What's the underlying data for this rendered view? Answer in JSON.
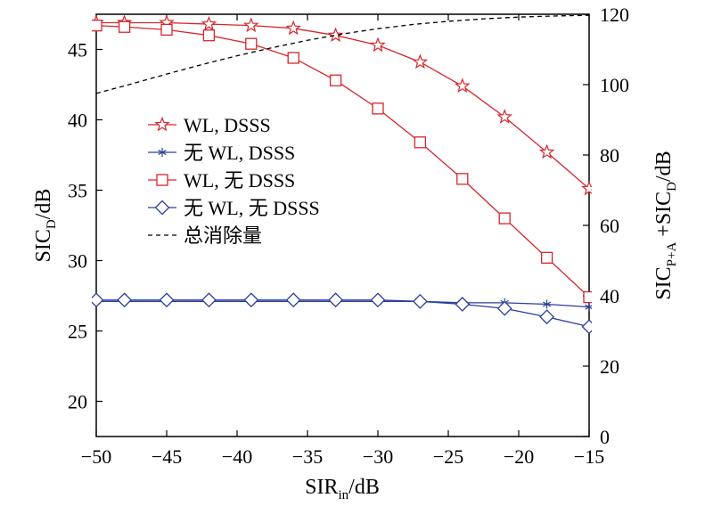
{
  "chart_data": {
    "type": "line",
    "xlabel": {
      "main": "SIR",
      "sub": "in",
      "unit": "/dB"
    },
    "ylabel_left": {
      "main": "SIC",
      "sub": "D",
      "unit": "/dB"
    },
    "ylabel_right": {
      "main1": "SIC",
      "sub1": "P+A",
      "mid": " +SIC",
      "sub2": "D",
      "unit": "/dB"
    },
    "xlim": [
      -50,
      -15
    ],
    "ylim_left": [
      17.5,
      47.5
    ],
    "ylim_right": [
      0,
      120
    ],
    "x_ticks": [
      -50,
      -45,
      -40,
      -35,
      -30,
      -25,
      -20,
      -15
    ],
    "x_tick_labels": [
      "−50",
      "−45",
      "−40",
      "−35",
      "−30",
      "−25",
      "−20",
      "−15"
    ],
    "y_left_ticks": [
      20,
      25,
      30,
      35,
      40,
      45
    ],
    "y_left_tick_labels": [
      "20",
      "25",
      "30",
      "35",
      "40",
      "45"
    ],
    "y_right_ticks": [
      0,
      20,
      40,
      60,
      80,
      100,
      120
    ],
    "y_right_tick_labels": [
      "0",
      "20",
      "40",
      "60",
      "80",
      "100",
      "120"
    ],
    "grid": false,
    "legend_position": "center-left",
    "colors": {
      "red": "#d6262c",
      "blue": "#2b3f9c",
      "black": "#000000"
    },
    "series": [
      {
        "name": "WL, DSSS",
        "axis": "left",
        "color": "#d6262c",
        "marker": "star",
        "line_style": "solid",
        "x": [
          -50,
          -48,
          -45,
          -42,
          -39,
          -36,
          -33,
          -30,
          -27,
          -24,
          -21,
          -18,
          -15
        ],
        "y": [
          46.9,
          46.9,
          46.9,
          46.8,
          46.7,
          46.5,
          46.0,
          45.3,
          44.1,
          42.4,
          40.2,
          37.7,
          35.1
        ]
      },
      {
        "name": "无 WL, DSSS",
        "axis": "left",
        "color": "#2b3f9c",
        "marker": "asterisk",
        "line_style": "solid",
        "x": [
          -50,
          -48,
          -45,
          -42,
          -39,
          -36,
          -33,
          -30,
          -27,
          -24,
          -21,
          -18,
          -15
        ],
        "y": [
          27.1,
          27.1,
          27.1,
          27.1,
          27.1,
          27.1,
          27.1,
          27.1,
          27.1,
          27.0,
          27.0,
          26.9,
          26.7
        ]
      },
      {
        "name": "WL, 无 DSSS",
        "axis": "left",
        "color": "#d6262c",
        "marker": "square",
        "line_style": "solid",
        "x": [
          -50,
          -48,
          -45,
          -42,
          -39,
          -36,
          -33,
          -30,
          -27,
          -24,
          -21,
          -18,
          -15
        ],
        "y": [
          46.7,
          46.6,
          46.4,
          46.0,
          45.4,
          44.4,
          42.8,
          40.8,
          38.4,
          35.8,
          33.0,
          30.2,
          27.4
        ]
      },
      {
        "name": "无 WL, 无 DSSS",
        "axis": "left",
        "color": "#2b3f9c",
        "marker": "diamond",
        "line_style": "solid",
        "x": [
          -50,
          -48,
          -45,
          -42,
          -39,
          -36,
          -33,
          -30,
          -27,
          -24,
          -21,
          -18,
          -15
        ],
        "y": [
          27.2,
          27.2,
          27.2,
          27.2,
          27.2,
          27.2,
          27.2,
          27.2,
          27.1,
          26.9,
          26.6,
          26.0,
          25.3
        ]
      },
      {
        "name": "总消除量",
        "axis": "right",
        "color": "#000000",
        "marker": "none",
        "line_style": "dashed",
        "x": [
          -50,
          -47.5,
          -45,
          -42.5,
          -40,
          -37.5,
          -35,
          -32.5,
          -30,
          -27.5,
          -25,
          -22.5,
          -20,
          -17.5,
          -15
        ],
        "y": [
          97.5,
          100.2,
          103.0,
          105.7,
          108.2,
          110.5,
          112.6,
          114.4,
          115.9,
          117.1,
          118.0,
          118.7,
          119.2,
          119.5,
          119.7
        ]
      }
    ]
  }
}
